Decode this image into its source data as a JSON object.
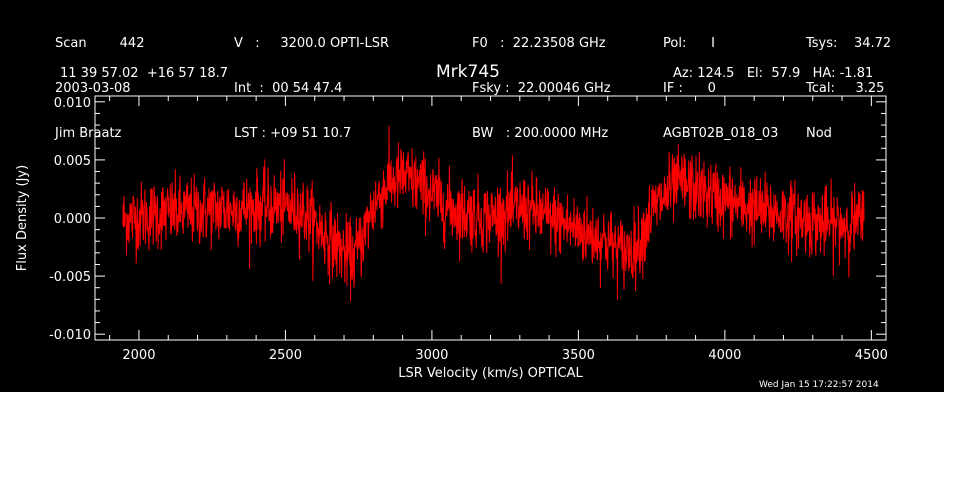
{
  "header": {
    "col1": [
      "Scan        442",
      "2003-03-08",
      "Jim Braatz"
    ],
    "col2": [
      "V   :     3200.0 OPTI-LSR",
      "Int  :  00 54 47.4",
      "LST : +09 51 10.7"
    ],
    "col3": [
      "F0   :  22.23508 GHz",
      "Fsky :  22.00046 GHz",
      "BW   : 200.0000 MHz"
    ],
    "col4": [
      "Pol:      I",
      "IF :      0",
      "AGBT02B_018_03"
    ],
    "col5": [
      "Tsys:    34.72",
      "Tcal:     3.25",
      "Nod"
    ],
    "coords": "11 39 57.02  +16 57 18.7",
    "source": "Mrk745",
    "azel": "Az: 124.5   El:  57.9   HA: -1.81",
    "timestamp": "Wed Jan 15 17:22:57 2014"
  },
  "chart_data": {
    "type": "line",
    "title": "Mrk745",
    "xlabel": "LSR Velocity (km/s) OPTICAL",
    "ylabel": "Flux Density (Jy)",
    "xlim": [
      1850,
      4550
    ],
    "ylim": [
      -0.0105,
      0.0105
    ],
    "x_ticks": [
      2000,
      2500,
      3000,
      3500,
      4000,
      4500
    ],
    "y_ticks": [
      -0.01,
      -0.005,
      0.0,
      0.005,
      0.01
    ],
    "x_tick_labels": [
      "2000",
      "2500",
      "3000",
      "3500",
      "4000",
      "4500"
    ],
    "y_tick_labels": [
      "-0.010",
      "-0.005",
      "0.000",
      "0.005",
      "0.010"
    ],
    "grid": false,
    "series": [
      {
        "color": "#ff0000",
        "x_range": [
          1945,
          4475
        ],
        "trend_x": [
          1945,
          2050,
          2150,
          2250,
          2350,
          2450,
          2550,
          2620,
          2680,
          2730,
          2760,
          2800,
          2850,
          2900,
          2950,
          3000,
          3050,
          3100,
          3150,
          3200,
          3250,
          3300,
          3350,
          3400,
          3450,
          3500,
          3550,
          3600,
          3650,
          3700,
          3750,
          3800,
          3850,
          3900,
          3950,
          4000,
          4050,
          4100,
          4150,
          4200,
          4250,
          4300,
          4350,
          4400,
          4475
        ],
        "trend_y": [
          -0.0002,
          0.0003,
          0.0005,
          0.0007,
          0.0008,
          0.001,
          0.0008,
          -0.001,
          -0.0025,
          -0.0035,
          -0.002,
          0.001,
          0.003,
          0.0035,
          0.003,
          0.002,
          0.001,
          0.0005,
          0.0003,
          0.0,
          0.0005,
          0.0008,
          0.0005,
          0.0,
          -0.0005,
          -0.001,
          -0.0015,
          -0.002,
          -0.003,
          -0.0025,
          0.0005,
          0.002,
          0.003,
          0.0025,
          0.002,
          0.0015,
          0.0012,
          0.0008,
          0.0005,
          0.0003,
          0.0,
          -0.0003,
          -0.0005,
          -0.0005,
          -0.0002
        ],
        "noise_sigma": 0.0015
      }
    ]
  }
}
